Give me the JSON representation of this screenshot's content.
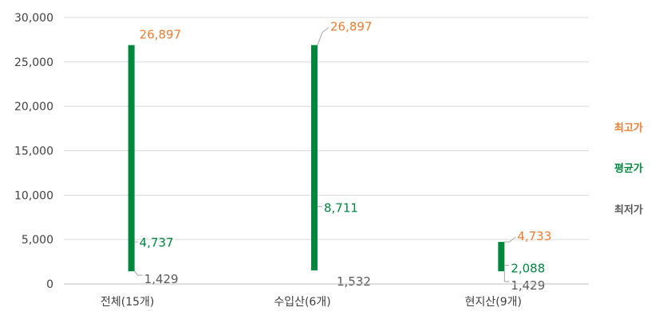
{
  "chart_data": {
    "type": "bar",
    "title": "",
    "xlabel": "",
    "ylabel": "",
    "ylim": [
      0,
      30000
    ],
    "y_ticks": [
      0,
      5000,
      10000,
      15000,
      20000,
      25000,
      30000
    ],
    "y_tick_labels": [
      "0",
      "5,000",
      "10,000",
      "15,000",
      "20,000",
      "25,000",
      "30,000"
    ],
    "grid": true,
    "legend_position": "right",
    "categories": [
      "전체(15개)",
      "수입산(6개)",
      "현지산(9개)"
    ],
    "series": [
      {
        "name": "최고가",
        "values": [
          26897,
          26897,
          4733
        ],
        "labels": [
          "26,897",
          "26,897",
          "4,733"
        ],
        "color": "#ED7D31"
      },
      {
        "name": "평균가",
        "values": [
          4737,
          8711,
          2088
        ],
        "labels": [
          "4,737",
          "8,711",
          "2,088"
        ],
        "color": "#00873E"
      },
      {
        "name": "최저가",
        "values": [
          1429,
          1532,
          1429
        ],
        "labels": [
          "1,429",
          "1,532",
          "1,429"
        ],
        "color": "#595959"
      }
    ],
    "bar_color": "#00873E"
  }
}
